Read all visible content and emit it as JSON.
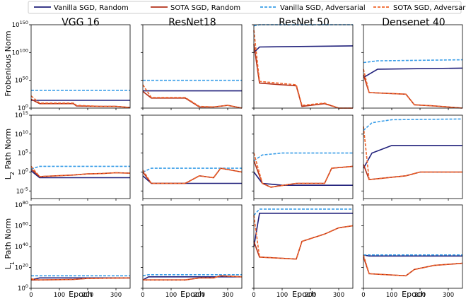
{
  "legend": [
    {
      "label": "Vanilla SGD, Random",
      "color": "#1f1f7a",
      "dash": "solid"
    },
    {
      "label": "SOTA SGD, Random",
      "color": "#b2301a",
      "dash": "solid"
    },
    {
      "label": "Vanilla SGD, Adversarial",
      "color": "#3a9ee8",
      "dash": "dashed"
    },
    {
      "label": "SOTA SGD, Adversarial",
      "color": "#f0642a",
      "dash": "dashed"
    }
  ],
  "columns": [
    "VGG 16",
    "ResNet18",
    "ResNet 50",
    "Densenet 40"
  ],
  "rows": [
    {
      "ylabel": "Frobenious Norm",
      "ylog": [
        0,
        150
      ],
      "ticks": [
        {
          "exp": "0",
          "v": 0
        },
        {
          "exp": "50",
          "v": 50
        },
        {
          "exp": "100",
          "v": 100
        },
        {
          "exp": "150",
          "v": 150
        }
      ]
    },
    {
      "ylabel_prefix": "L",
      "ylabel_sub": "2",
      "ylabel_suffix": " Path Norm",
      "ylog": [
        -7,
        15
      ],
      "ticks": [
        {
          "exp": "-5",
          "v": -5
        },
        {
          "exp": "0",
          "v": 0
        },
        {
          "exp": "5",
          "v": 5
        },
        {
          "exp": "10",
          "v": 10
        },
        {
          "exp": "15",
          "v": 15
        }
      ]
    },
    {
      "ylabel_prefix": "L",
      "ylabel_sub": "1",
      "ylabel_suffix": " Path Norm",
      "ylog": [
        0,
        80
      ],
      "ticks": [
        {
          "exp": "0",
          "v": 0
        },
        {
          "exp": "20",
          "v": 20
        },
        {
          "exp": "40",
          "v": 40
        },
        {
          "exp": "60",
          "v": 60
        },
        {
          "exp": "80",
          "v": 80
        }
      ]
    }
  ],
  "xlabel": "Epoch",
  "xticks": [
    0,
    100,
    200,
    300
  ],
  "chart_data": {
    "type": "line",
    "x_range": [
      0,
      350
    ],
    "y_scale": "log10",
    "note_units": "y values are log10 of norm",
    "panels": [
      {
        "row": 0,
        "col": 0,
        "series": [
          {
            "name": "Vanilla SGD, Random",
            "x": [
              0,
              350
            ],
            "y": [
              14,
              14
            ]
          },
          {
            "name": "SOTA SGD, Random",
            "x": [
              0,
              30,
              150,
              160,
              250,
              300,
              350
            ],
            "y": [
              16,
              8,
              8,
              4,
              3,
              3,
              1
            ]
          },
          {
            "name": "Vanilla SGD, Adversarial",
            "x": [
              0,
              350
            ],
            "y": [
              32,
              32
            ]
          },
          {
            "name": "SOTA SGD, Adversarial",
            "x": [
              0,
              30,
              150,
              160,
              250,
              300,
              350
            ],
            "y": [
              22,
              9,
              9,
              5,
              3,
              3,
              1
            ]
          }
        ]
      },
      {
        "row": 0,
        "col": 1,
        "series": [
          {
            "name": "Vanilla SGD, Random",
            "x": [
              0,
              350
            ],
            "y": [
              31,
              31
            ]
          },
          {
            "name": "SOTA SGD, Random",
            "x": [
              0,
              30,
              150,
              200,
              250,
              300,
              350
            ],
            "y": [
              30,
              18,
              18,
              2,
              2,
              5,
              -2
            ]
          },
          {
            "name": "Vanilla SGD, Adversarial",
            "x": [
              0,
              350
            ],
            "y": [
              50,
              50
            ]
          },
          {
            "name": "SOTA SGD, Adversarial",
            "x": [
              0,
              30,
              150,
              200,
              250,
              300,
              350
            ],
            "y": [
              42,
              19,
              19,
              3,
              2,
              5,
              -2
            ]
          }
        ]
      },
      {
        "row": 0,
        "col": 2,
        "series": [
          {
            "name": "Vanilla SGD, Random",
            "x": [
              0,
              20,
              350
            ],
            "y": [
              100,
              110,
              112
            ]
          },
          {
            "name": "SOTA SGD, Random",
            "x": [
              0,
              20,
              150,
              170,
              250,
              300,
              350
            ],
            "y": [
              115,
              45,
              40,
              3,
              8,
              0,
              -15
            ]
          },
          {
            "name": "Vanilla SGD, Adversarial",
            "x": [
              0,
              20,
              350
            ],
            "y": [
              148,
              150,
              150
            ]
          },
          {
            "name": "SOTA SGD, Adversarial",
            "x": [
              0,
              20,
              150,
              170,
              250,
              300,
              350
            ],
            "y": [
              140,
              48,
              42,
              5,
              9,
              0,
              -16
            ]
          }
        ]
      },
      {
        "row": 0,
        "col": 3,
        "series": [
          {
            "name": "Vanilla SGD, Random",
            "x": [
              0,
              50,
              350
            ],
            "y": [
              55,
              70,
              72
            ]
          },
          {
            "name": "SOTA SGD, Random",
            "x": [
              0,
              20,
              150,
              180,
              250,
              350
            ],
            "y": [
              60,
              28,
              25,
              6,
              4,
              -2
            ]
          },
          {
            "name": "Vanilla SGD, Adversarial",
            "x": [
              0,
              50,
              350
            ],
            "y": [
              82,
              85,
              87
            ]
          },
          {
            "name": "SOTA SGD, Adversarial",
            "x": [
              0,
              20,
              150,
              180,
              250,
              350
            ],
            "y": [
              70,
              28,
              25,
              6,
              4,
              -2
            ]
          }
        ]
      },
      {
        "row": 1,
        "col": 0,
        "series": [
          {
            "name": "Vanilla SGD, Random",
            "x": [
              0,
              30,
              350
            ],
            "y": [
              0.3,
              -1.5,
              -1.5
            ]
          },
          {
            "name": "SOTA SGD, Random",
            "x": [
              0,
              30,
              150,
              200,
              250,
              300,
              350
            ],
            "y": [
              0.8,
              -1.2,
              -0.8,
              -0.5,
              -0.4,
              -0.2,
              -0.3
            ]
          },
          {
            "name": "Vanilla SGD, Adversarial",
            "x": [
              0,
              30,
              350
            ],
            "y": [
              0.8,
              1.5,
              1.5
            ]
          },
          {
            "name": "SOTA SGD, Adversarial",
            "x": [
              0,
              30,
              150,
              200,
              250,
              300,
              350
            ],
            "y": [
              1.5,
              -1.2,
              -0.8,
              -0.5,
              -0.4,
              -0.2,
              -0.3
            ]
          }
        ]
      },
      {
        "row": 1,
        "col": 1,
        "series": [
          {
            "name": "Vanilla SGD, Random",
            "x": [
              0,
              30,
              350
            ],
            "y": [
              -1,
              -3,
              -3
            ]
          },
          {
            "name": "SOTA SGD, Random",
            "x": [
              0,
              30,
              150,
              200,
              250,
              275,
              350
            ],
            "y": [
              0,
              -3,
              -3,
              -1,
              -1.5,
              1,
              0
            ]
          },
          {
            "name": "Vanilla SGD, Adversarial",
            "x": [
              0,
              30,
              350
            ],
            "y": [
              0,
              1,
              1
            ]
          },
          {
            "name": "SOTA SGD, Adversarial",
            "x": [
              0,
              30,
              150,
              200,
              250,
              275,
              350
            ],
            "y": [
              0.5,
              -3,
              -3,
              -1,
              -1.5,
              1,
              0
            ]
          }
        ]
      },
      {
        "row": 1,
        "col": 2,
        "series": [
          {
            "name": "Vanilla SGD, Random",
            "x": [
              0,
              30,
              100,
              350
            ],
            "y": [
              0,
              -3,
              -3.5,
              -3.5
            ]
          },
          {
            "name": "SOTA SGD, Random",
            "x": [
              0,
              30,
              60,
              150,
              250,
              275,
              350
            ],
            "y": [
              3,
              -3,
              -4,
              -3,
              -3,
              1,
              1.5
            ]
          },
          {
            "name": "Vanilla SGD, Adversarial",
            "x": [
              0,
              30,
              100,
              350
            ],
            "y": [
              3,
              4.5,
              5,
              5
            ]
          },
          {
            "name": "SOTA SGD, Adversarial",
            "x": [
              0,
              30,
              60,
              150,
              250,
              275,
              350
            ],
            "y": [
              5,
              -3,
              -4,
              -3,
              -3,
              1,
              1.5
            ]
          }
        ]
      },
      {
        "row": 1,
        "col": 3,
        "series": [
          {
            "name": "Vanilla SGD, Random",
            "x": [
              0,
              30,
              100,
              350
            ],
            "y": [
              1,
              5,
              7,
              7
            ]
          },
          {
            "name": "SOTA SGD, Random",
            "x": [
              0,
              20,
              150,
              200,
              350
            ],
            "y": [
              2,
              -2,
              -1,
              0,
              0
            ]
          },
          {
            "name": "Vanilla SGD, Adversarial",
            "x": [
              0,
              30,
              100,
              350
            ],
            "y": [
              11,
              13,
              13.8,
              14
            ]
          },
          {
            "name": "SOTA SGD, Adversarial",
            "x": [
              0,
              20,
              150,
              200,
              350
            ],
            "y": [
              12,
              -2,
              -1,
              0,
              0
            ]
          }
        ]
      },
      {
        "row": 2,
        "col": 0,
        "series": [
          {
            "name": "Vanilla SGD, Random",
            "x": [
              0,
              30,
              350
            ],
            "y": [
              8,
              10,
              10
            ]
          },
          {
            "name": "SOTA SGD, Random",
            "x": [
              0,
              30,
              150,
              200,
              350
            ],
            "y": [
              8,
              8,
              8.5,
              9.5,
              10
            ]
          },
          {
            "name": "Vanilla SGD, Adversarial",
            "x": [
              0,
              30,
              350
            ],
            "y": [
              12,
              12,
              12
            ]
          },
          {
            "name": "SOTA SGD, Adversarial",
            "x": [
              0,
              30,
              150,
              200,
              350
            ],
            "y": [
              9,
              8,
              8.5,
              9.5,
              10
            ]
          }
        ]
      },
      {
        "row": 2,
        "col": 1,
        "series": [
          {
            "name": "Vanilla SGD, Random",
            "x": [
              0,
              20,
              350
            ],
            "y": [
              8,
              11,
              11
            ]
          },
          {
            "name": "SOTA SGD, Random",
            "x": [
              0,
              150,
              200,
              250,
              275,
              350
            ],
            "y": [
              8,
              8,
              10,
              10,
              12,
              11
            ]
          },
          {
            "name": "Vanilla SGD, Adversarial",
            "x": [
              0,
              20,
              350
            ],
            "y": [
              12,
              13,
              13
            ]
          },
          {
            "name": "SOTA SGD, Adversarial",
            "x": [
              0,
              150,
              200,
              250,
              275,
              350
            ],
            "y": [
              8,
              8,
              10,
              10,
              12,
              11
            ]
          }
        ]
      },
      {
        "row": 2,
        "col": 2,
        "series": [
          {
            "name": "Vanilla SGD, Random",
            "x": [
              0,
              20,
              350
            ],
            "y": [
              40,
              72,
              72
            ]
          },
          {
            "name": "SOTA SGD, Random",
            "x": [
              0,
              20,
              150,
              170,
              250,
              300,
              350
            ],
            "y": [
              45,
              30,
              28,
              45,
              52,
              58,
              60
            ]
          },
          {
            "name": "Vanilla SGD, Adversarial",
            "x": [
              0,
              20,
              350
            ],
            "y": [
              70,
              76,
              76
            ]
          },
          {
            "name": "SOTA SGD, Adversarial",
            "x": [
              0,
              20,
              150,
              170,
              250,
              300,
              350
            ],
            "y": [
              70,
              30,
              28,
              45,
              52,
              58,
              60
            ]
          }
        ]
      },
      {
        "row": 2,
        "col": 3,
        "series": [
          {
            "name": "Vanilla SGD, Random",
            "x": [
              0,
              20,
              350
            ],
            "y": [
              32,
              31,
              31
            ]
          },
          {
            "name": "SOTA SGD, Random",
            "x": [
              0,
              20,
              150,
              180,
              250,
              350
            ],
            "y": [
              30,
              14,
              12,
              18,
              22,
              24
            ]
          },
          {
            "name": "Vanilla SGD, Adversarial",
            "x": [
              0,
              20,
              350
            ],
            "y": [
              32,
              32,
              32
            ]
          },
          {
            "name": "SOTA SGD, Adversarial",
            "x": [
              0,
              20,
              150,
              180,
              250,
              350
            ],
            "y": [
              32,
              14,
              12,
              18,
              22,
              24
            ]
          }
        ]
      }
    ]
  }
}
